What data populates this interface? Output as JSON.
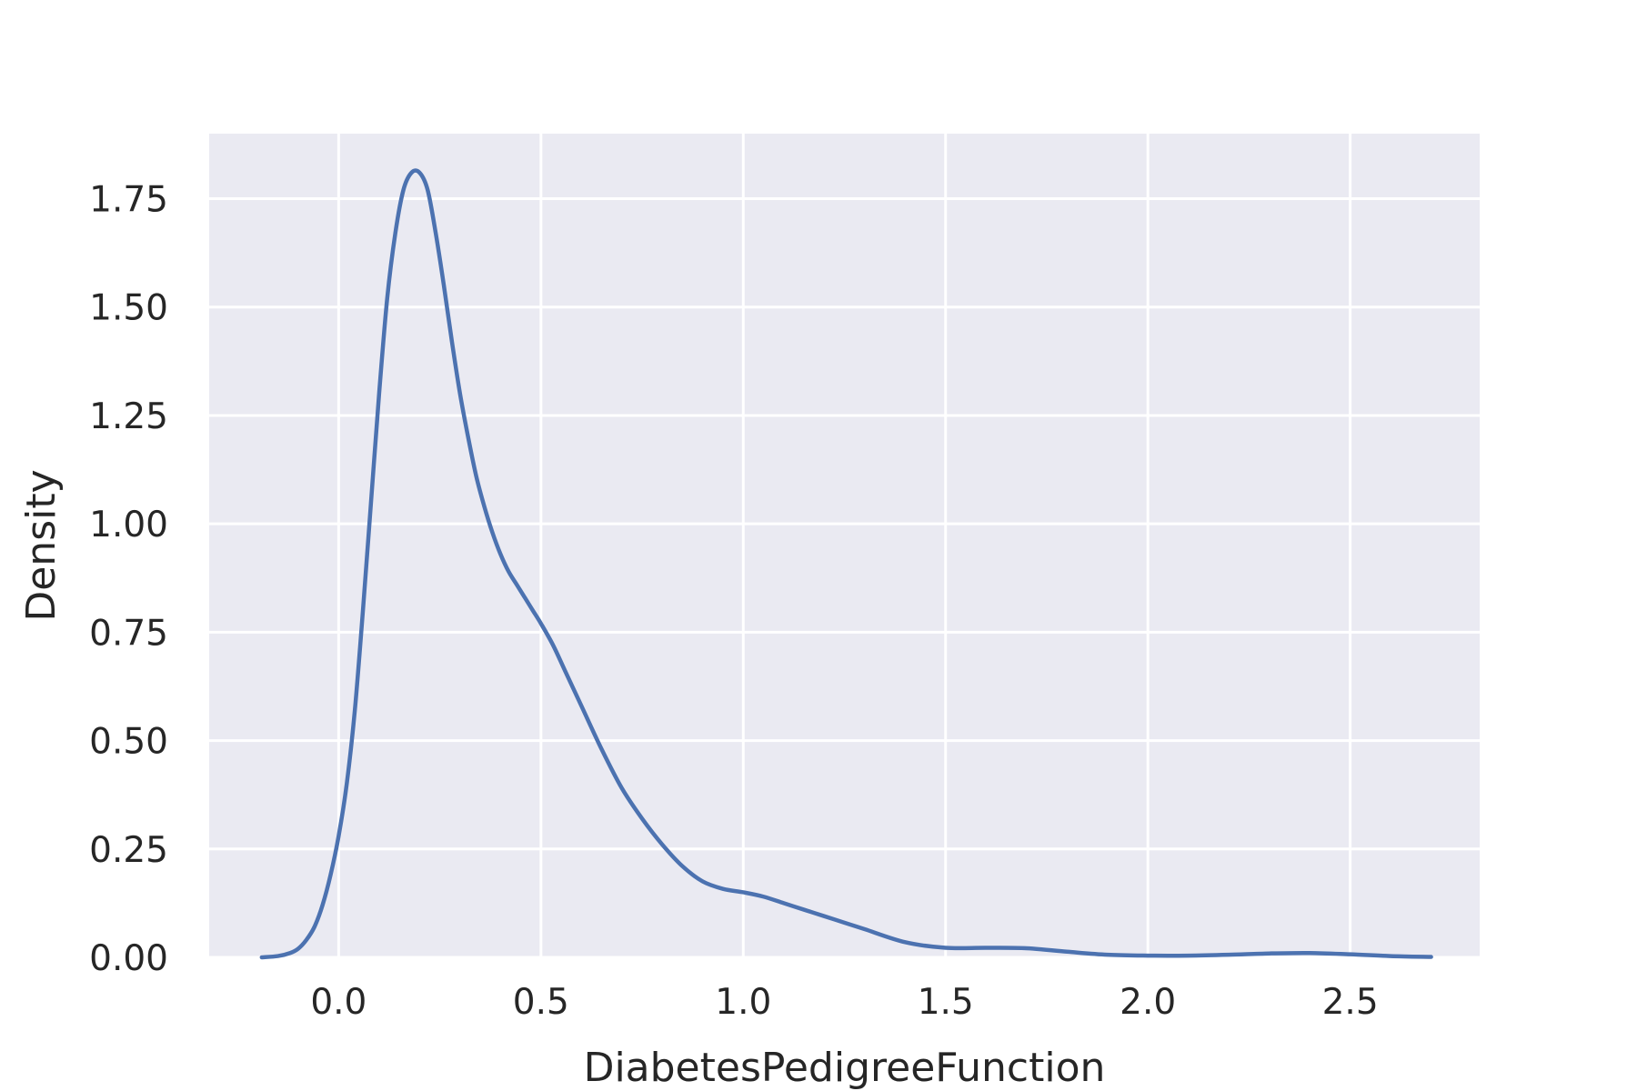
{
  "chart_data": {
    "type": "line",
    "xlabel": "DiabetesPedigreeFunction",
    "ylabel": "Density",
    "xlim": [
      -0.32,
      2.82
    ],
    "ylim": [
      0.0,
      1.9
    ],
    "x_ticks": [
      "0.0",
      "0.5",
      "1.0",
      "1.5",
      "2.0",
      "2.5"
    ],
    "y_ticks": [
      "0.00",
      "0.25",
      "0.50",
      "0.75",
      "1.00",
      "1.25",
      "1.50",
      "1.75"
    ],
    "grid": true,
    "legend": "none",
    "colors": {
      "plot_background": "#EAEAF2",
      "grid": "#FFFFFF",
      "line": "#4C72B0",
      "text": "#262626"
    },
    "series": [
      {
        "color": "#4C72B0",
        "x": [
          -0.19,
          -0.15,
          -0.12,
          -0.1,
          -0.08,
          -0.06,
          -0.04,
          -0.02,
          0.0,
          0.02,
          0.04,
          0.06,
          0.08,
          0.1,
          0.12,
          0.14,
          0.16,
          0.18,
          0.2,
          0.22,
          0.24,
          0.26,
          0.28,
          0.3,
          0.32,
          0.34,
          0.36,
          0.38,
          0.4,
          0.42,
          0.44,
          0.46,
          0.48,
          0.5,
          0.53,
          0.56,
          0.6,
          0.65,
          0.7,
          0.75,
          0.8,
          0.85,
          0.9,
          0.95,
          1.0,
          1.05,
          1.1,
          1.15,
          1.2,
          1.25,
          1.3,
          1.4,
          1.5,
          1.6,
          1.7,
          1.8,
          1.9,
          2.0,
          2.1,
          2.2,
          2.3,
          2.4,
          2.5,
          2.6,
          2.7
        ],
        "y": [
          0.0,
          0.003,
          0.01,
          0.02,
          0.04,
          0.07,
          0.12,
          0.19,
          0.28,
          0.4,
          0.57,
          0.8,
          1.05,
          1.3,
          1.52,
          1.67,
          1.77,
          1.81,
          1.81,
          1.77,
          1.67,
          1.55,
          1.42,
          1.3,
          1.2,
          1.11,
          1.04,
          0.98,
          0.93,
          0.89,
          0.86,
          0.83,
          0.8,
          0.77,
          0.72,
          0.66,
          0.58,
          0.48,
          0.39,
          0.32,
          0.26,
          0.21,
          0.175,
          0.158,
          0.15,
          0.14,
          0.125,
          0.11,
          0.095,
          0.08,
          0.065,
          0.035,
          0.022,
          0.022,
          0.021,
          0.013,
          0.006,
          0.004,
          0.004,
          0.006,
          0.009,
          0.01,
          0.007,
          0.003,
          0.001
        ]
      }
    ]
  }
}
